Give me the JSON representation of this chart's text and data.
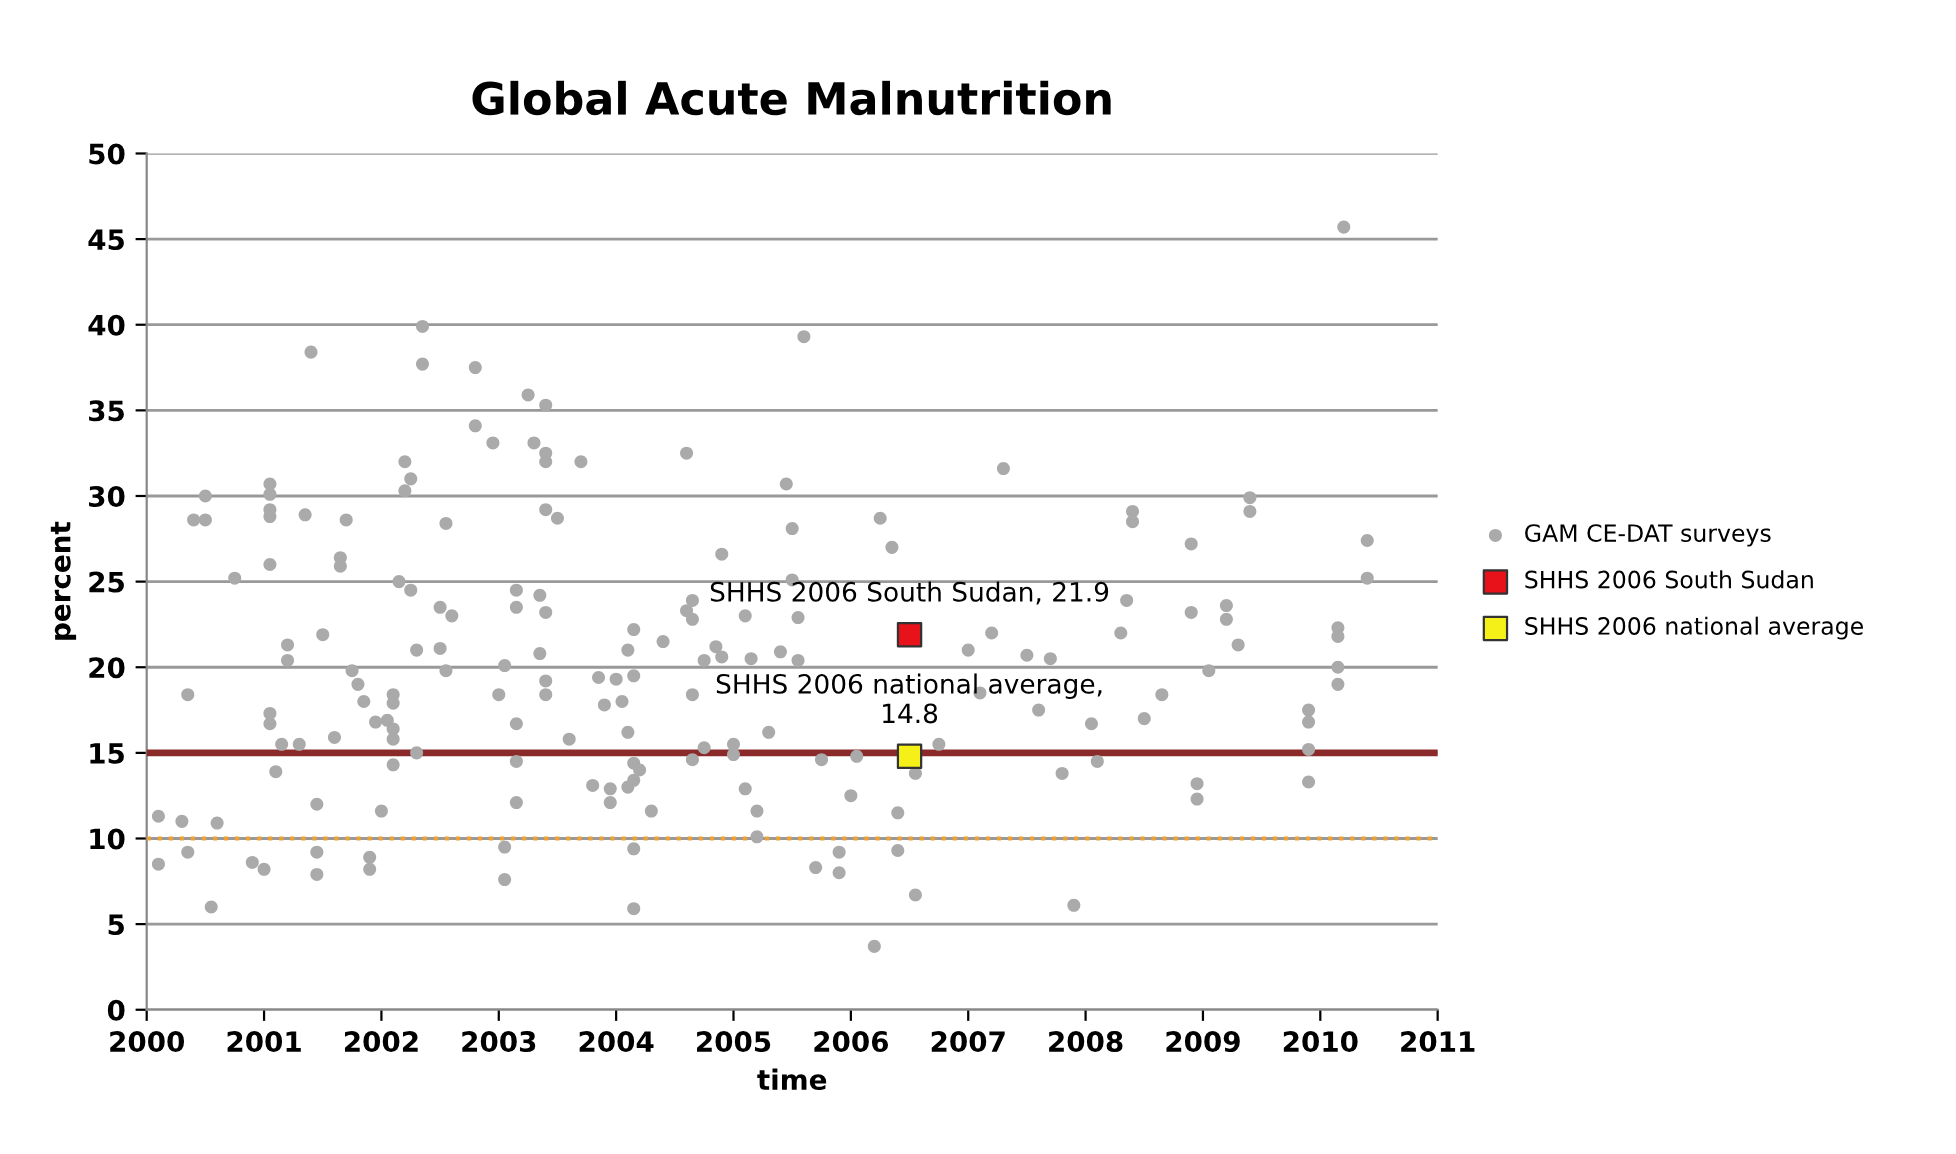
{
  "chart_data": {
    "type": "scatter",
    "title": "Global Acute Malnutrition",
    "xlabel": "time",
    "ylabel": "percent",
    "xlim": [
      2000,
      2011
    ],
    "xticks": [
      2000,
      2001,
      2002,
      2003,
      2004,
      2005,
      2006,
      2007,
      2008,
      2009,
      2010,
      2011
    ],
    "ylim": [
      0,
      50
    ],
    "yticks": [
      0,
      5,
      10,
      15,
      20,
      25,
      30,
      35,
      40,
      45,
      50
    ],
    "grid": "y",
    "legend": "right",
    "series": [
      {
        "name": "GAM CE-DAT surveys",
        "color": "#aaaaaa",
        "marker": "circle",
        "x": [
          2000.1,
          2000.1,
          2000.3,
          2000.35,
          2000.35,
          2000.4,
          2000.5,
          2000.5,
          2000.55,
          2000.6,
          2000.75,
          2000.9,
          2001.0,
          2001.05,
          2001.05,
          2001.05,
          2001.05,
          2001.05,
          2001.05,
          2001.05,
          2001.1,
          2001.15,
          2001.2,
          2001.2,
          2001.3,
          2001.35,
          2001.4,
          2001.45,
          2001.45,
          2001.45,
          2001.5,
          2001.6,
          2001.65,
          2001.65,
          2001.7,
          2001.75,
          2001.8,
          2001.85,
          2001.9,
          2001.9,
          2001.95,
          2002.0,
          2002.05,
          2002.1,
          2002.1,
          2002.1,
          2002.1,
          2002.1,
          2002.15,
          2002.2,
          2002.2,
          2002.25,
          2002.25,
          2002.3,
          2002.3,
          2002.35,
          2002.35,
          2002.5,
          2002.5,
          2002.55,
          2002.55,
          2002.6,
          2002.8,
          2002.8,
          2002.95,
          2003.0,
          2003.05,
          2003.05,
          2003.05,
          2003.15,
          2003.15,
          2003.15,
          2003.15,
          2003.15,
          2003.25,
          2003.3,
          2003.35,
          2003.35,
          2003.4,
          2003.4,
          2003.4,
          2003.4,
          2003.4,
          2003.4,
          2003.4,
          2003.5,
          2003.6,
          2003.7,
          2003.8,
          2003.85,
          2003.9,
          2003.95,
          2003.95,
          2004.0,
          2004.05,
          2004.1,
          2004.1,
          2004.1,
          2004.15,
          2004.15,
          2004.15,
          2004.15,
          2004.15,
          2004.15,
          2004.2,
          2004.3,
          2004.4,
          2004.6,
          2004.6,
          2004.65,
          2004.65,
          2004.65,
          2004.65,
          2004.75,
          2004.75,
          2004.85,
          2004.9,
          2004.9,
          2005.0,
          2005.0,
          2005.1,
          2005.1,
          2005.15,
          2005.2,
          2005.2,
          2005.3,
          2005.4,
          2005.45,
          2005.5,
          2005.5,
          2005.55,
          2005.55,
          2005.6,
          2005.7,
          2005.75,
          2005.9,
          2005.9,
          2006.0,
          2006.05,
          2006.2,
          2006.25,
          2006.35,
          2006.4,
          2006.4,
          2006.55,
          2006.55,
          2006.75,
          2007.0,
          2007.1,
          2007.2,
          2007.3,
          2007.5,
          2007.6,
          2007.7,
          2007.8,
          2007.9,
          2008.05,
          2008.1,
          2008.3,
          2008.35,
          2008.4,
          2008.4,
          2008.5,
          2008.65,
          2008.9,
          2008.9,
          2008.95,
          2008.95,
          2009.05,
          2009.2,
          2009.2,
          2009.3,
          2009.4,
          2009.4,
          2009.9,
          2009.9,
          2009.9,
          2009.9,
          2010.15,
          2010.15,
          2010.15,
          2010.15,
          2010.2,
          2010.4,
          2010.4
        ],
        "values": [
          11.3,
          8.5,
          11,
          18.4,
          9.2,
          28.6,
          28.6,
          30,
          6,
          10.9,
          25.2,
          8.6,
          8.2,
          17.3,
          16.7,
          26,
          28.8,
          29.2,
          30.1,
          30.7,
          13.9,
          15.5,
          21.3,
          20.4,
          15.5,
          28.9,
          38.4,
          12,
          9.2,
          7.9,
          21.9,
          15.9,
          25.9,
          26.4,
          28.6,
          19.8,
          19,
          18,
          8.9,
          8.2,
          16.8,
          11.6,
          16.9,
          18.4,
          17.9,
          16.4,
          15.8,
          14.3,
          25,
          32,
          30.3,
          31,
          24.5,
          15,
          21,
          39.9,
          37.7,
          23.5,
          21.1,
          19.8,
          28.4,
          23,
          37.5,
          34.1,
          33.1,
          18.4,
          20.1,
          9.5,
          7.6,
          24.5,
          23.5,
          16.7,
          14.5,
          12.1,
          35.9,
          33.1,
          24.2,
          20.8,
          35.3,
          32.5,
          32,
          29.2,
          23.2,
          19.2,
          18.4,
          28.7,
          15.8,
          32,
          13.1,
          19.4,
          17.8,
          12.9,
          12.1,
          19.3,
          18,
          21,
          13,
          16.2,
          22.2,
          19.5,
          14.4,
          13.4,
          9.4,
          5.9,
          14,
          11.6,
          21.5,
          32.5,
          23.3,
          23.9,
          22.8,
          18.4,
          14.6,
          15.3,
          20.4,
          21.2,
          26.6,
          20.6,
          15.5,
          14.9,
          23,
          12.9,
          20.5,
          11.6,
          10.1,
          16.2,
          20.9,
          30.7,
          28.1,
          25.1,
          22.9,
          20.4,
          39.3,
          8.3,
          14.6,
          9.2,
          8.0,
          12.5,
          14.8,
          3.7,
          28.7,
          27,
          11.5,
          9.3,
          13.8,
          6.7,
          15.5,
          21,
          18.5,
          22,
          31.6,
          20.7,
          17.5,
          20.5,
          13.8,
          6.1,
          16.7,
          14.5,
          22,
          23.9,
          29.1,
          28.5,
          17,
          18.4,
          27.2,
          23.2,
          13.2,
          12.3,
          19.8,
          23.6,
          22.8,
          21.3,
          29.9,
          29.1,
          17.5,
          16.8,
          15.2,
          13.3,
          22.3,
          21.8,
          20,
          19,
          45.7,
          27.4,
          25.2
        ]
      },
      {
        "name": "SHHS 2006 South Sudan",
        "color": "#e8121a",
        "marker": "square",
        "x": [
          2006.5
        ],
        "values": [
          21.9
        ]
      },
      {
        "name": "SHHS 2006 national average",
        "color": "#f5f017",
        "marker": "square",
        "x": [
          2006.5
        ],
        "values": [
          14.8
        ]
      }
    ],
    "annotations": [
      {
        "text": "SHHS 2006 South Sudan, 21.9",
        "x": 2006.5,
        "y": 21.9
      },
      {
        "text": "SHHS 2006 national average,\n14.8",
        "x": 2006.5,
        "y": 14.8
      }
    ],
    "ref_lines": [
      {
        "axis": "y",
        "value": 15,
        "color": "#8b2a2a",
        "line_style": "solid"
      },
      {
        "axis": "y",
        "value": 10,
        "color": "#f0a030",
        "line_style": "dotted"
      }
    ]
  }
}
